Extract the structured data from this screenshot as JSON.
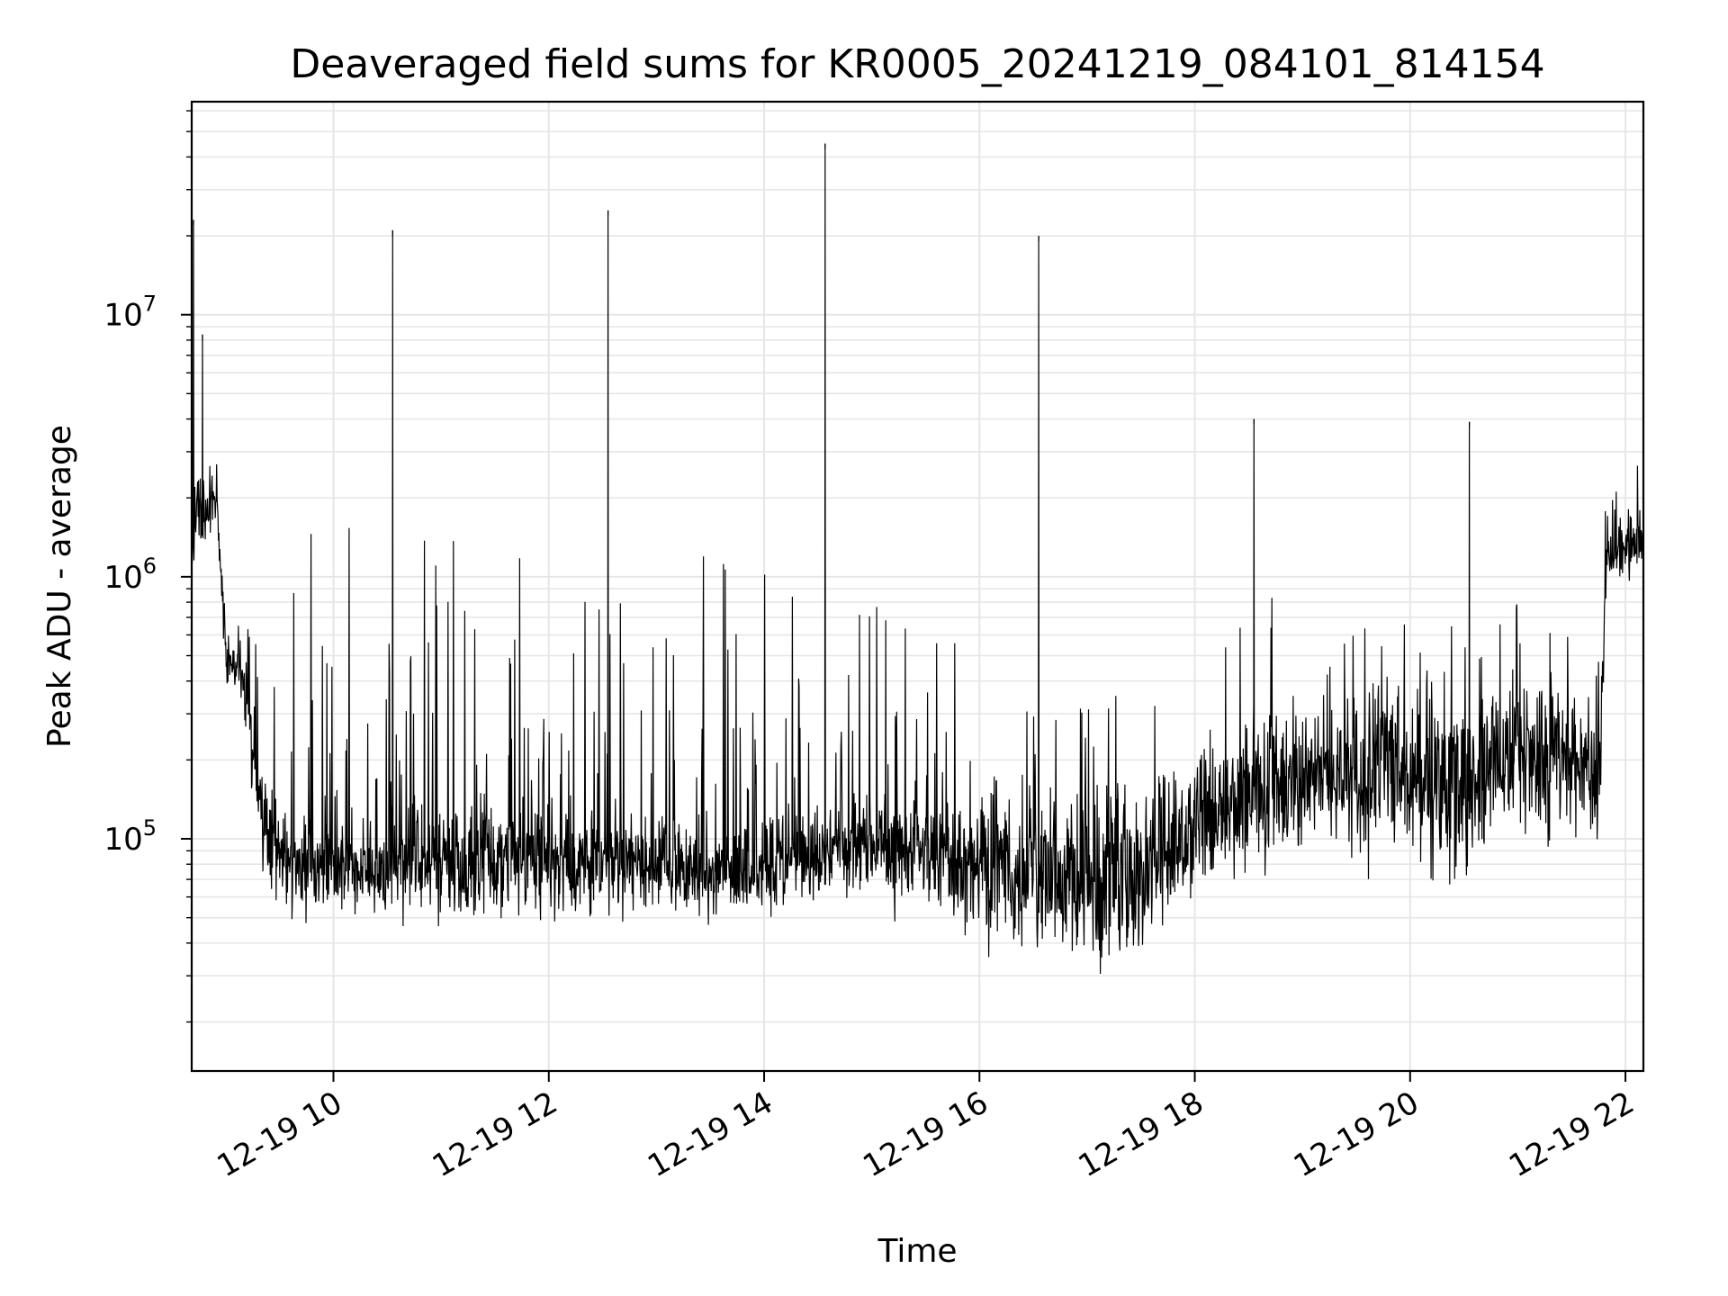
{
  "chart_data": {
    "type": "line",
    "title": "Deaveraged field sums for KR0005_20241219_084101_814154",
    "xlabel": "Time",
    "ylabel": "Peak ADU - average",
    "x_axis": {
      "kind": "datetime",
      "range": [
        "2024-12-19 08:41",
        "2024-12-19 22:10"
      ],
      "ticks": [
        "2024-12-19 10:00",
        "2024-12-19 12:00",
        "2024-12-19 14:00",
        "2024-12-19 16:00",
        "2024-12-19 18:00",
        "2024-12-19 20:00",
        "2024-12-19 22:00"
      ],
      "tick_labels": [
        "12-19 10",
        "12-19 12",
        "12-19 14",
        "12-19 16",
        "12-19 18",
        "12-19 20",
        "12-19 22"
      ]
    },
    "y_axis": {
      "scale": "log",
      "range": [
        13000,
        65000000
      ],
      "major_ticks": [
        100000,
        1000000,
        10000000
      ],
      "major_tick_labels": [
        {
          "base": "10",
          "exp": "5"
        },
        {
          "base": "10",
          "exp": "6"
        },
        {
          "base": "10",
          "exp": "7"
        }
      ]
    },
    "grid": true,
    "line_color": "#000000",
    "grid_color": "#e6e6e6",
    "series": [
      {
        "x": [
          "2024-12-19 08:41",
          "2024-12-19 08:45",
          "2024-12-19 08:55",
          "2024-12-19 09:00",
          "2024-12-19 09:05",
          "2024-12-19 09:10",
          "2024-12-19 09:20",
          "2024-12-19 09:30",
          "2024-12-19 09:45",
          "2024-12-19 10:00",
          "2024-12-19 10:15",
          "2024-12-19 10:30",
          "2024-12-19 10:45",
          "2024-12-19 11:00",
          "2024-12-19 11:30",
          "2024-12-19 12:00",
          "2024-12-19 12:30",
          "2024-12-19 13:00",
          "2024-12-19 13:30",
          "2024-12-19 14:00",
          "2024-12-19 14:30",
          "2024-12-19 15:00",
          "2024-12-19 15:30",
          "2024-12-19 16:00",
          "2024-12-19 16:30",
          "2024-12-19 17:00",
          "2024-12-19 17:30",
          "2024-12-19 18:00",
          "2024-12-19 18:30",
          "2024-12-19 19:00",
          "2024-12-19 19:30",
          "2024-12-19 20:00",
          "2024-12-19 20:30",
          "2024-12-19 21:00",
          "2024-12-19 21:30",
          "2024-12-19 21:45",
          "2024-12-19 21:50",
          "2024-12-19 22:00",
          "2024-12-19 22:10"
        ],
        "y": [
          1500000,
          1700000,
          1900000,
          500000,
          450000,
          400000,
          130000,
          85000,
          80000,
          75000,
          75000,
          78000,
          82000,
          80000,
          78000,
          78000,
          80000,
          78000,
          72000,
          75000,
          90000,
          100000,
          85000,
          75000,
          70000,
          65000,
          70000,
          110000,
          140000,
          160000,
          170000,
          160000,
          150000,
          200000,
          200000,
          150000,
          1200000,
          1300000,
          1400000
        ],
        "spread_low": [
          900000,
          1100000,
          1200000,
          350000,
          300000,
          250000,
          70000,
          50000,
          45000,
          45000,
          45000,
          45000,
          45000,
          45000,
          45000,
          45000,
          45000,
          45000,
          45000,
          45000,
          55000,
          55000,
          45000,
          35000,
          30000,
          25000,
          30000,
          55000,
          60000,
          70000,
          70000,
          60000,
          55000,
          80000,
          80000,
          70000,
          800000,
          900000,
          900000
        ],
        "spread_high": [
          2400000,
          2400000,
          2400000,
          800000,
          700000,
          600000,
          1500000,
          1500000,
          1600000,
          1600000,
          1600000,
          1600000,
          1500000,
          1500000,
          1400000,
          1300000,
          1400000,
          1400000,
          1400000,
          1300000,
          1300000,
          800000,
          600000,
          600000,
          500000,
          400000,
          400000,
          600000,
          900000,
          900000,
          800000,
          700000,
          700000,
          800000,
          700000,
          600000,
          2600000,
          2800000,
          2800000
        ]
      }
    ],
    "spikes": [
      {
        "x": "2024-12-19 08:42",
        "y": 23000000
      },
      {
        "x": "2024-12-19 08:47",
        "y": 8400000
      },
      {
        "x": "2024-12-19 10:33",
        "y": 21000000
      },
      {
        "x": "2024-12-19 12:33",
        "y": 25000000
      },
      {
        "x": "2024-12-19 14:34",
        "y": 45000000
      },
      {
        "x": "2024-12-19 16:33",
        "y": 20000000
      },
      {
        "x": "2024-12-19 18:33",
        "y": 4000000
      },
      {
        "x": "2024-12-19 20:33",
        "y": 3900000
      }
    ]
  }
}
